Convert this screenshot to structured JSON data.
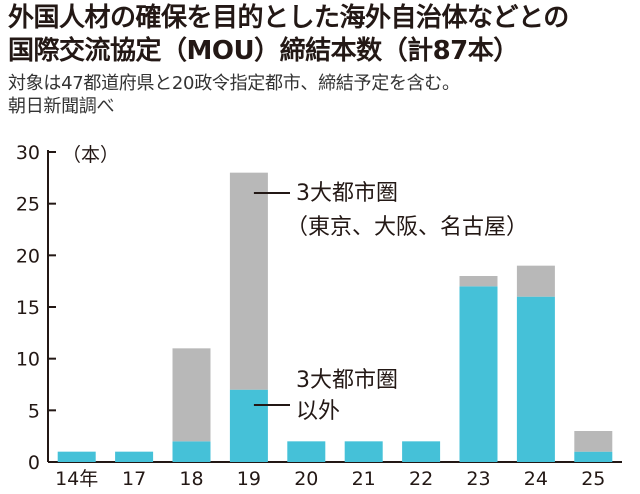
{
  "title_line1": "外国人材の確保を目的とした海外自治体などとの",
  "title_line2": "国際交流協定（MOU）締結本数（計87本）",
  "subtitle_line1": "対象は47都道府県と20政令指定都市、締結予定を含む。",
  "subtitle_line2": "朝日新聞調べ",
  "colors": {
    "other": "#45c1d8",
    "metro": "#b8b8b8",
    "text": "#231815"
  },
  "chart_data": {
    "type": "bar",
    "stacked": true,
    "categories": [
      "14年",
      "17",
      "18",
      "19",
      "20",
      "21",
      "22",
      "23",
      "24",
      "25"
    ],
    "series": [
      {
        "name": "3大都市圏以外",
        "values": [
          1,
          1,
          2,
          7,
          2,
          2,
          2,
          17,
          16,
          1
        ]
      },
      {
        "name": "3大都市圏（東京、大阪、名古屋）",
        "values": [
          0,
          0,
          9,
          21,
          0,
          0,
          0,
          1,
          3,
          2
        ]
      }
    ],
    "ylabel": "（本）",
    "ylim": [
      0,
      30
    ],
    "yticks": [
      0,
      5,
      10,
      15,
      20,
      25,
      30
    ],
    "annotations": {
      "metro_line1": "3大都市圏",
      "metro_line2": "（東京、大阪、名古屋）",
      "other_line1": "3大都市圏",
      "other_line2": "以外"
    }
  }
}
